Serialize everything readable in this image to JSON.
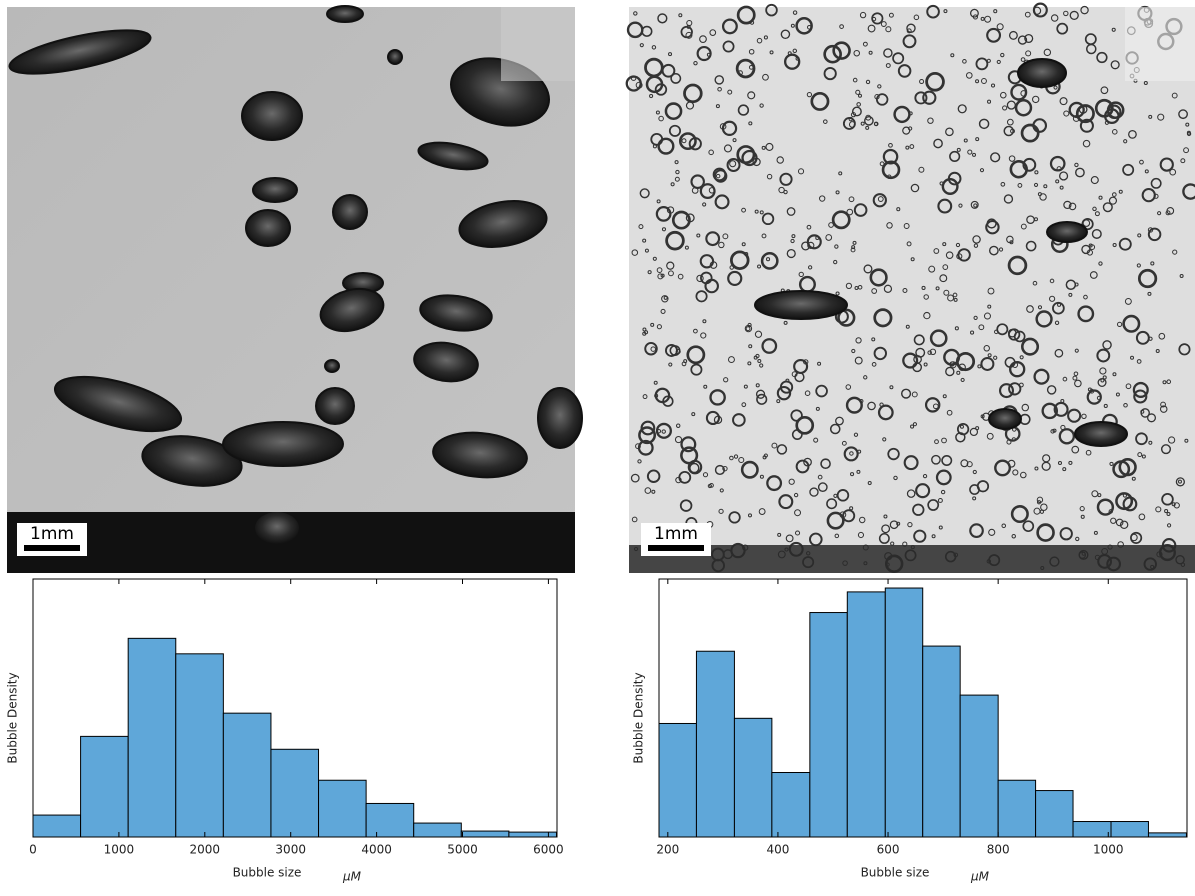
{
  "photos": [
    {
      "scale_bar_label": "1mm"
    },
    {
      "scale_bar_label": "1mm"
    }
  ],
  "chart_data": [
    {
      "type": "histogram",
      "x_label": "Bubble size",
      "x_unit": "μM",
      "y_label": "Bubble Density",
      "color": "#5fa7d9",
      "bins": [
        0,
        554,
        1108,
        1662,
        2216,
        2770,
        3324,
        3878,
        4432,
        4986,
        5540,
        6094
      ],
      "values": [
        0.085,
        0.39,
        0.77,
        0.71,
        0.48,
        0.34,
        0.22,
        0.13,
        0.054,
        0.023,
        0.019
      ],
      "xlim": [
        0,
        6100
      ],
      "xticks": [
        0,
        1000,
        2000,
        3000,
        4000,
        5000,
        6000
      ],
      "ylim": [
        0,
        1
      ]
    },
    {
      "type": "histogram",
      "x_label": "Bubble size",
      "x_unit": "μM",
      "y_label": "Bubble Density",
      "color": "#5fa7d9",
      "bins": [
        184,
        252,
        321,
        389,
        458,
        526,
        595,
        663,
        731,
        800,
        868,
        936,
        1005,
        1073,
        1142
      ],
      "values": [
        0.44,
        0.72,
        0.46,
        0.25,
        0.87,
        0.95,
        0.965,
        0.74,
        0.55,
        0.22,
        0.18,
        0.06,
        0.06,
        0.016
      ],
      "xlim": [
        184,
        1143
      ],
      "xticks": [
        200,
        400,
        600,
        800,
        1000
      ],
      "ylim": [
        0,
        1
      ]
    }
  ]
}
